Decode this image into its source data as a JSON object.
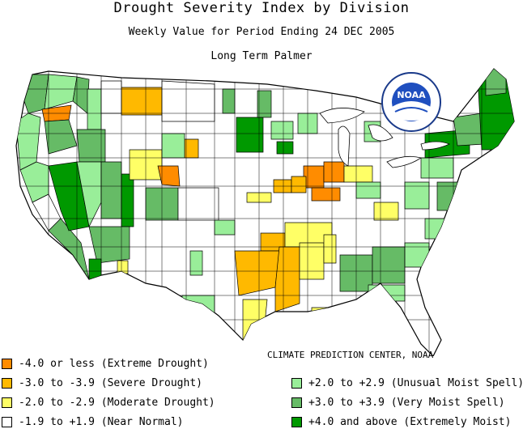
{
  "title": "Drought Severity Index by Division",
  "subtitle": "Weekly Value for Period Ending 24 DEC 2005",
  "index_name": "Long Term Palmer",
  "credit": "CLIMATE PREDICTION CENTER, NOAA",
  "logo_text": "NOAA",
  "colors": {
    "extreme_drought": "#ff8c00",
    "severe_drought": "#ffb900",
    "moderate_drought": "#ffff66",
    "near_normal": "#ffffff",
    "unusual_moist": "#99ee99",
    "very_moist": "#66bb66",
    "extremely_moist": "#009900",
    "border": "#000000"
  },
  "legend": [
    {
      "label": "-4.0 or less (Extreme Drought)",
      "color": "#ff8c00"
    },
    {
      "label": "-3.0 to -3.9 (Severe Drought)",
      "color": "#ffb900"
    },
    {
      "label": "-2.0 to -2.9 (Moderate Drought)",
      "color": "#ffff66"
    },
    {
      "label": "-1.9 to +1.9 (Near Normal)",
      "color": "#ffffff"
    },
    {
      "label": "+2.0 to +2.9 (Unusual Moist Spell)",
      "color": "#99ee99"
    },
    {
      "label": "+3.0 to +3.9 (Very Moist Spell)",
      "color": "#66bb66"
    },
    {
      "label": "+4.0 and above (Extremely Moist)",
      "color": "#009900"
    }
  ]
}
